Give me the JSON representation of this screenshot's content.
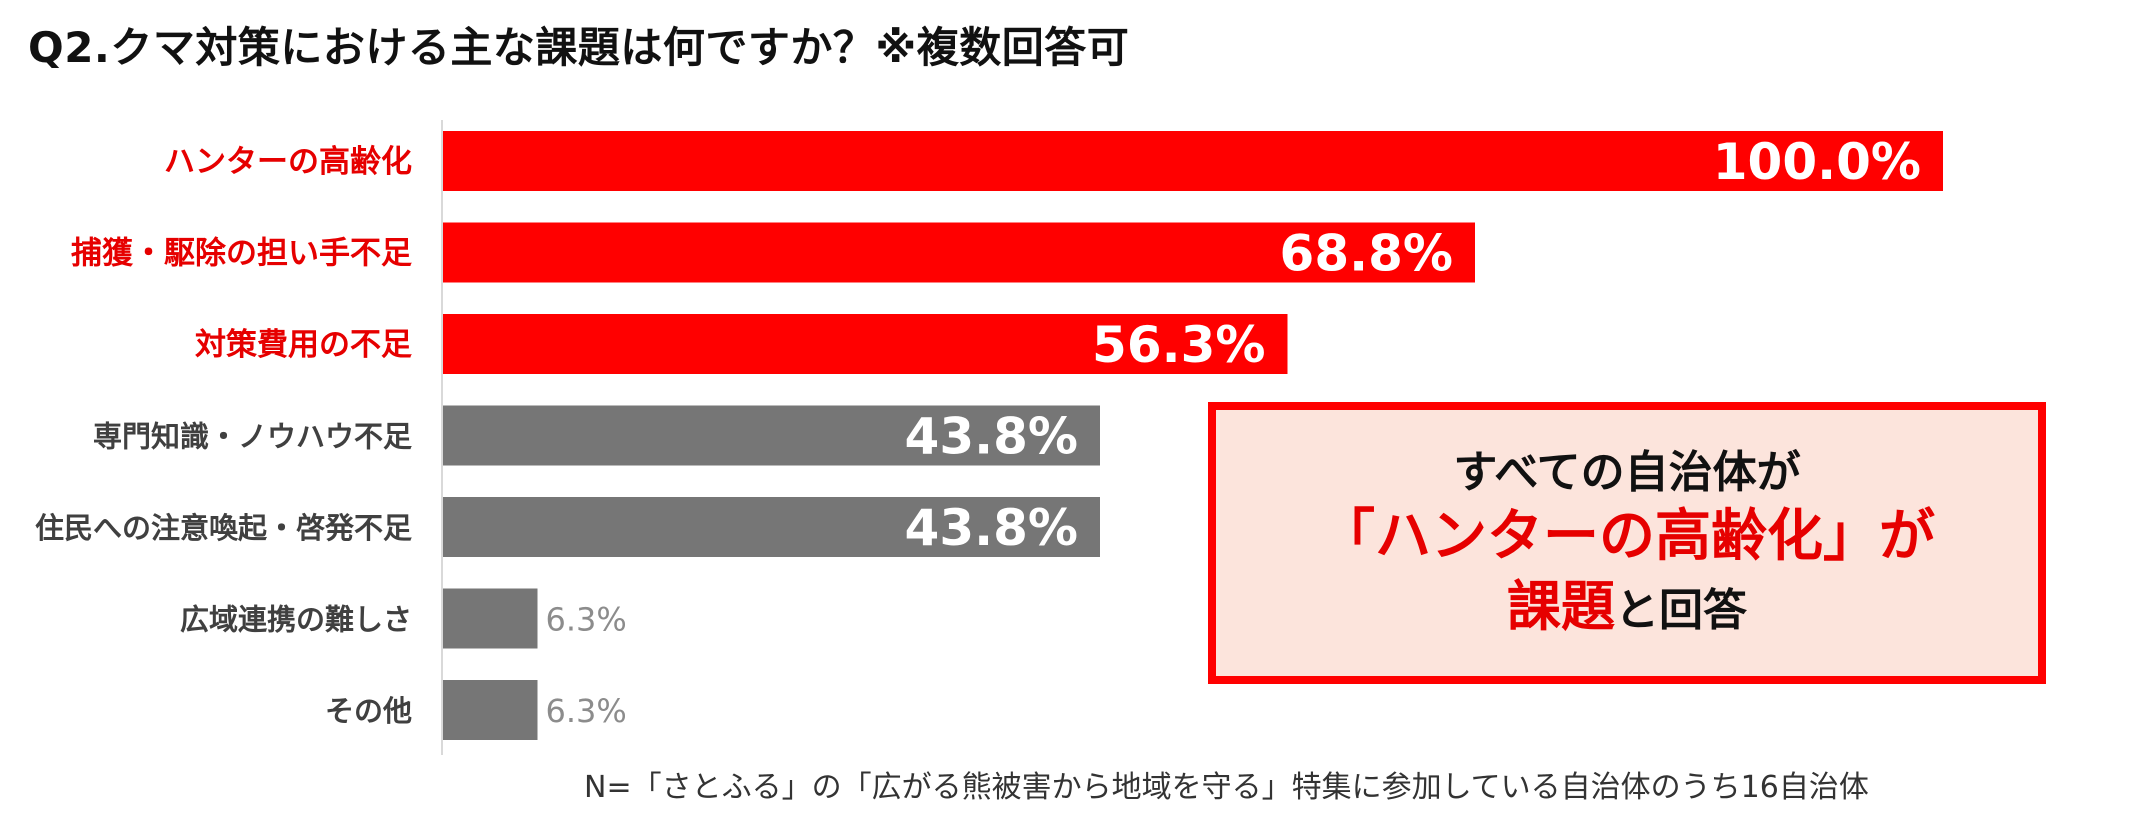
{
  "title": "Q2.クマ対策における主な課題は何ですか？※複数回答可",
  "chart_data": {
    "type": "bar",
    "orientation": "horizontal",
    "categories": [
      "ハンターの高齢化",
      "捕獲・駆除の担い手不足",
      "対策費用の不足",
      "専門知識・ノウハウ不足",
      "住民への注意喚起・啓発不足",
      "広域連携の難しさ",
      "その他"
    ],
    "values": [
      100.0,
      68.8,
      56.3,
      43.8,
      43.8,
      6.3,
      6.3
    ],
    "value_labels": [
      "100.0%",
      "68.8%",
      "56.3%",
      "43.8%",
      "43.8%",
      "6.3%",
      "6.3%"
    ],
    "highlighted": [
      true,
      true,
      true,
      false,
      false,
      false,
      false
    ],
    "xlim": [
      0,
      100
    ],
    "grid": false
  },
  "colors": {
    "highlight": "#ff0000",
    "highlight_label": "#e60000",
    "normal": "#767676",
    "normal_label": "#404040",
    "small_value": "#8c8c8c"
  },
  "callout": {
    "line1": "すべての自治体が",
    "line2": "「ハンターの高齢化」が",
    "line3_red": "課題",
    "line3_black": "と回答"
  },
  "footnote": "N=「さとふる」の「広がる熊被害から地域を守る」特集に参加している自治体のうち16自治体"
}
